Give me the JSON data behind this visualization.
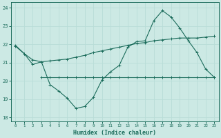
{
  "xlabel": "Humidex (Indice chaleur)",
  "xlim": [
    -0.5,
    23.5
  ],
  "ylim": [
    17.8,
    24.3
  ],
  "yticks": [
    18,
    19,
    20,
    21,
    22,
    23,
    24
  ],
  "xticks": [
    0,
    1,
    2,
    3,
    4,
    5,
    6,
    7,
    8,
    9,
    10,
    11,
    12,
    13,
    14,
    15,
    16,
    17,
    18,
    19,
    20,
    21,
    22,
    23
  ],
  "bg_color": "#cce9e4",
  "line_color": "#1a6b5a",
  "grid_color": "#b8ddd7",
  "line1_x": [
    0,
    1,
    2,
    3,
    4,
    5,
    6,
    7,
    8,
    9,
    10,
    11,
    12,
    13,
    14,
    15,
    16,
    17,
    18,
    19,
    20,
    21,
    22,
    23
  ],
  "line1_y": [
    21.9,
    21.5,
    20.9,
    21.05,
    19.8,
    19.45,
    19.05,
    18.5,
    18.6,
    19.1,
    20.05,
    20.5,
    20.85,
    21.85,
    22.15,
    22.2,
    23.3,
    23.85,
    23.5,
    22.9,
    22.2,
    21.55,
    20.65,
    20.2
  ],
  "line2_x": [
    3,
    4,
    5,
    6,
    7,
    8,
    9,
    10,
    11,
    12,
    13,
    14,
    15,
    16,
    17,
    18,
    19,
    20,
    21,
    22,
    23
  ],
  "line2_y": [
    20.2,
    20.2,
    20.2,
    20.2,
    20.2,
    20.2,
    20.2,
    20.2,
    20.2,
    20.2,
    20.2,
    20.2,
    20.2,
    20.2,
    20.2,
    20.2,
    20.2,
    20.2,
    20.2,
    20.2,
    20.2
  ],
  "line3_x": [
    0,
    1,
    2,
    3,
    4,
    5,
    6,
    7,
    8,
    9,
    10,
    11,
    12,
    13,
    14,
    15,
    16,
    17,
    18,
    19,
    20,
    21,
    22,
    23
  ],
  "line3_y": [
    21.95,
    21.5,
    21.15,
    21.05,
    21.1,
    21.15,
    21.2,
    21.3,
    21.4,
    21.55,
    21.65,
    21.75,
    21.85,
    21.95,
    22.05,
    22.1,
    22.2,
    22.25,
    22.3,
    22.35,
    22.35,
    22.35,
    22.4,
    22.45
  ]
}
